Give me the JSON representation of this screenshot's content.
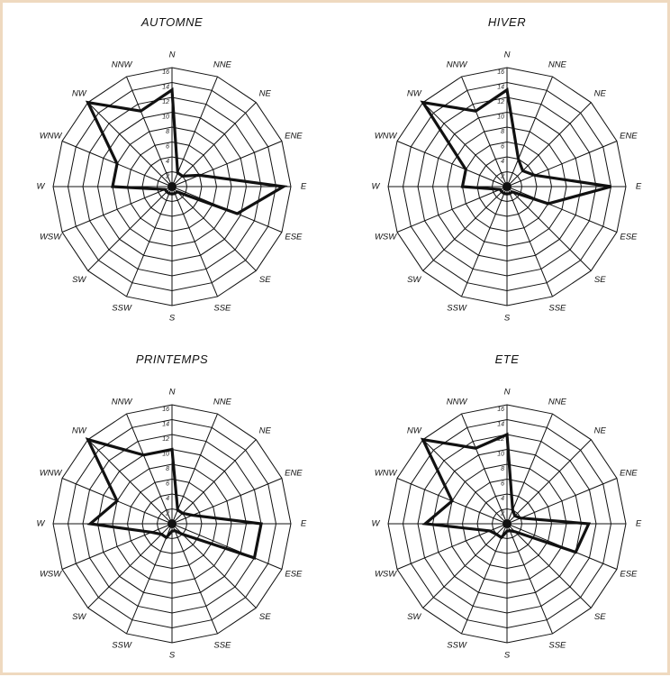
{
  "chart_data": [
    {
      "type": "radar",
      "title": "AUTOMNE",
      "directions": [
        "N",
        "NNE",
        "NE",
        "ENE",
        "E",
        "ESE",
        "SE",
        "SSE",
        "S",
        "SSW",
        "SW",
        "WSW",
        "W",
        "WNW",
        "NW",
        "NNW"
      ],
      "rmax": 16,
      "ticks": [
        2,
        4,
        6,
        8,
        10,
        12,
        14,
        16
      ],
      "values": [
        13,
        2,
        2,
        4,
        15,
        9.5,
        1,
        1,
        1,
        1,
        1,
        1,
        8,
        8,
        16,
        11
      ]
    },
    {
      "type": "radar",
      "title": "HIVER",
      "directions": [
        "N",
        "NNE",
        "NE",
        "ENE",
        "E",
        "ESE",
        "SE",
        "SSE",
        "S",
        "SSW",
        "SW",
        "WSW",
        "W",
        "WNW",
        "NW",
        "NNW"
      ],
      "rmax": 16,
      "ticks": [
        2,
        4,
        6,
        8,
        10,
        12,
        14,
        16
      ],
      "values": [
        13,
        4,
        3,
        4,
        14,
        6,
        1,
        1,
        1,
        1,
        1,
        1,
        6,
        6,
        16,
        11
      ]
    },
    {
      "type": "radar",
      "title": "PRINTEMPS",
      "directions": [
        "N",
        "NNE",
        "NE",
        "ENE",
        "E",
        "ESE",
        "SE",
        "SSE",
        "S",
        "SSW",
        "SW",
        "WSW",
        "W",
        "WNW",
        "NW",
        "NNW"
      ],
      "rmax": 16,
      "ticks": [
        2,
        4,
        6,
        8,
        10,
        12,
        14,
        16
      ],
      "values": [
        10,
        2,
        2,
        3,
        12,
        12,
        2,
        1,
        1,
        2,
        2,
        3,
        11,
        8,
        16,
        10
      ]
    },
    {
      "type": "radar",
      "title": "ETE",
      "directions": [
        "N",
        "NNE",
        "NE",
        "ENE",
        "E",
        "ESE",
        "SE",
        "SSE",
        "S",
        "SSW",
        "SW",
        "WSW",
        "W",
        "WNW",
        "NW",
        "NNW"
      ],
      "rmax": 16,
      "ticks": [
        2,
        4,
        6,
        8,
        10,
        12,
        14,
        16
      ],
      "values": [
        12,
        2,
        1.5,
        2,
        11,
        10,
        1.5,
        1,
        1,
        2,
        2,
        2.5,
        11,
        8,
        16,
        11
      ]
    }
  ]
}
